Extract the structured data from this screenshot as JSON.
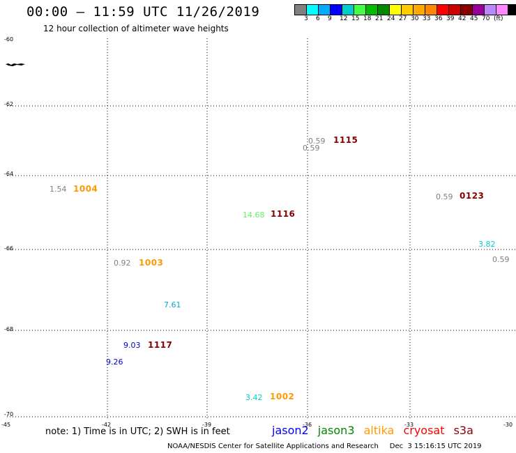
{
  "header": {
    "title": "00:00 – 11:59 UTC 11/26/2019",
    "subtitle": "12 hour collection of altimeter wave heights"
  },
  "colorbar": {
    "colors": [
      "#808080",
      "#00ffff",
      "#00aaff",
      "#0000ff",
      "#00cccc",
      "#44ff44",
      "#00bb00",
      "#008800",
      "#ffff00",
      "#ffcc00",
      "#ffaa00",
      "#ff8800",
      "#ff0000",
      "#cc0000",
      "#880000",
      "#990099",
      "#bb88ff",
      "#ff88ff",
      "#000000"
    ],
    "labels": [
      "3",
      "6",
      "9",
      "12",
      "15",
      "18",
      "21",
      "24",
      "27",
      "30",
      "33",
      "36",
      "39",
      "42",
      "45",
      "70",
      "(ft)"
    ]
  },
  "map": {
    "lat_labels": [
      "-60",
      "-62",
      "-64",
      "-66",
      "-68",
      "-70"
    ],
    "lon_labels": [
      "-45",
      "-42",
      "-39",
      "-36",
      "-33",
      "-30"
    ],
    "wave_values": [
      {
        "text": "1.54",
        "color": "#808080"
      },
      {
        "text": "0.92",
        "color": "#808080"
      },
      {
        "text": "7.61",
        "color": "#00aacc"
      },
      {
        "text": "9.03",
        "color": "#0000cc"
      },
      {
        "text": "9.26",
        "color": "#0000cc"
      },
      {
        "text": "14.68",
        "color": "#66ee66"
      },
      {
        "text": "0.59",
        "color": "#808080"
      },
      {
        "text": "0.59",
        "color": "#808080"
      },
      {
        "text": "3.42",
        "color": "#00cccc"
      },
      {
        "text": "0.59",
        "color": "#808080"
      },
      {
        "text": "3.82",
        "color": "#00cccc"
      },
      {
        "text": "0.59",
        "color": "#808080"
      }
    ],
    "buoys": [
      {
        "text": "1004",
        "color": "#ff9900"
      },
      {
        "text": "1003",
        "color": "#ff9900"
      },
      {
        "text": "1117",
        "color": "#880000"
      },
      {
        "text": "1116",
        "color": "#880000"
      },
      {
        "text": "1115",
        "color": "#880000"
      },
      {
        "text": "1002",
        "color": "#ff9900"
      },
      {
        "text": "0123",
        "color": "#880000"
      }
    ]
  },
  "footer": {
    "note": "note: 1) Time is in UTC; 2) SWH is in feet",
    "satellites": [
      {
        "name": "jason2",
        "color": "#0000ff"
      },
      {
        "name": "jason3",
        "color": "#008800"
      },
      {
        "name": "altika",
        "color": "#ff9900"
      },
      {
        "name": "cryosat",
        "color": "#ff0000"
      },
      {
        "name": "s3a",
        "color": "#880000"
      }
    ],
    "credit": "NOAA/NESDIS Center for Satellite Applications and Research     Dec  3 15:16:15 UTC 2019"
  }
}
